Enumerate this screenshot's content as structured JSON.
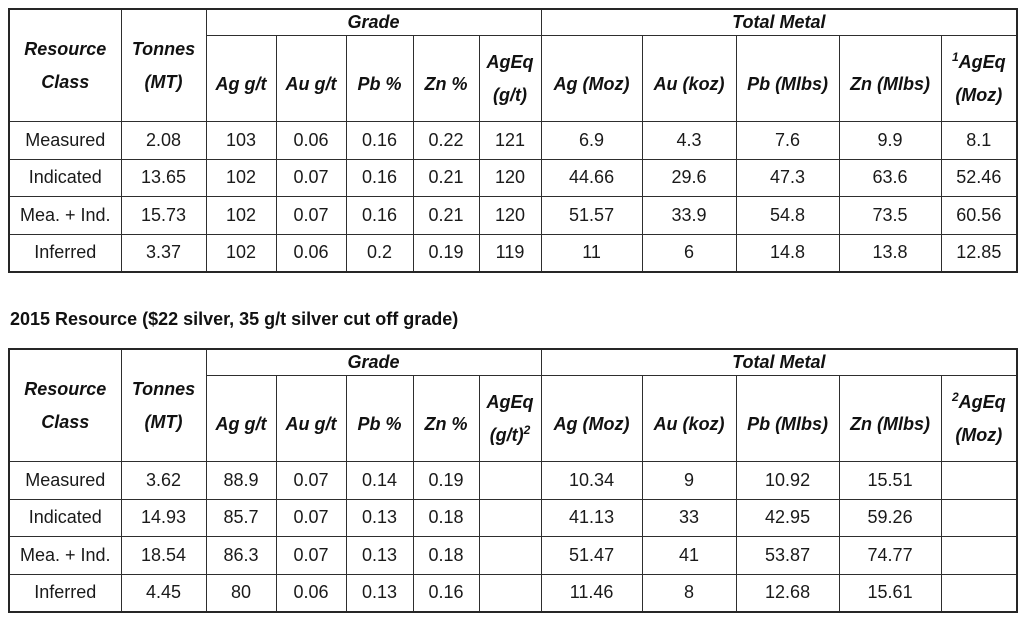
{
  "heading": "2015 Resource ($22 silver, 35 g/t silver cut off grade)",
  "tables": [
    {
      "header": {
        "resource_class_line1": "Resource",
        "resource_class_line2": "Class",
        "tonnes_line1": "Tonnes",
        "tonnes_line2": "(MT)",
        "grade_group": "Grade",
        "total_metal_group": "Total Metal",
        "ag_grade": "Ag g/t",
        "au_grade": "Au g/t",
        "pb_grade": "Pb %",
        "zn_grade": "Zn %",
        "ageq_grade_line1": "AgEq",
        "ageq_grade_line2": "(g/t)",
        "ageq_grade_sup": "",
        "ag_metal": "Ag (Moz)",
        "au_metal": "Au (koz)",
        "pb_metal": "Pb (Mlbs)",
        "zn_metal": "Zn (Mlbs)",
        "ageq_metal_sup": "1",
        "ageq_metal_line1": "AgEq",
        "ageq_metal_line2": "(Moz)"
      },
      "rows": [
        {
          "label": "Measured",
          "values": [
            "2.08",
            "103",
            "0.06",
            "0.16",
            "0.22",
            "121",
            "6.9",
            "4.3",
            "7.6",
            "9.9",
            "8.1"
          ]
        },
        {
          "label": "Indicated",
          "values": [
            "13.65",
            "102",
            "0.07",
            "0.16",
            "0.21",
            "120",
            "44.66",
            "29.6",
            "47.3",
            "63.6",
            "52.46"
          ]
        },
        {
          "label": "Mea. + Ind.",
          "values": [
            "15.73",
            "102",
            "0.07",
            "0.16",
            "0.21",
            "120",
            "51.57",
            "33.9",
            "54.8",
            "73.5",
            "60.56"
          ]
        },
        {
          "label": "Inferred",
          "values": [
            "3.37",
            "102",
            "0.06",
            "0.2",
            "0.19",
            "119",
            "11",
            "6",
            "14.8",
            "13.8",
            "12.85"
          ]
        }
      ]
    },
    {
      "header": {
        "resource_class_line1": "Resource",
        "resource_class_line2": "Class",
        "tonnes_line1": "Tonnes",
        "tonnes_line2": "(MT)",
        "grade_group": "Grade",
        "total_metal_group": "Total Metal",
        "ag_grade": "Ag g/t",
        "au_grade": "Au g/t",
        "pb_grade": "Pb %",
        "zn_grade": "Zn %",
        "ageq_grade_line1": "AgEq",
        "ageq_grade_line2": "(g/t)",
        "ageq_grade_sup": "2",
        "ag_metal": "Ag (Moz)",
        "au_metal": "Au (koz)",
        "pb_metal": "Pb (Mlbs)",
        "zn_metal": "Zn (Mlbs)",
        "ageq_metal_sup": "2",
        "ageq_metal_line1": "AgEq",
        "ageq_metal_line2": "(Moz)"
      },
      "rows": [
        {
          "label": "Measured",
          "values": [
            "3.62",
            "88.9",
            "0.07",
            "0.14",
            "0.19",
            "",
            "10.34",
            "9",
            "10.92",
            "15.51",
            ""
          ]
        },
        {
          "label": "Indicated",
          "values": [
            "14.93",
            "85.7",
            "0.07",
            "0.13",
            "0.18",
            "",
            "41.13",
            "33",
            "42.95",
            "59.26",
            ""
          ]
        },
        {
          "label": "Mea. + Ind.",
          "values": [
            "18.54",
            "86.3",
            "0.07",
            "0.13",
            "0.18",
            "",
            "51.47",
            "41",
            "53.87",
            "74.77",
            ""
          ]
        },
        {
          "label": "Inferred",
          "values": [
            "4.45",
            "80",
            "0.06",
            "0.13",
            "0.16",
            "",
            "11.46",
            "8",
            "12.68",
            "15.61",
            ""
          ]
        }
      ]
    }
  ]
}
